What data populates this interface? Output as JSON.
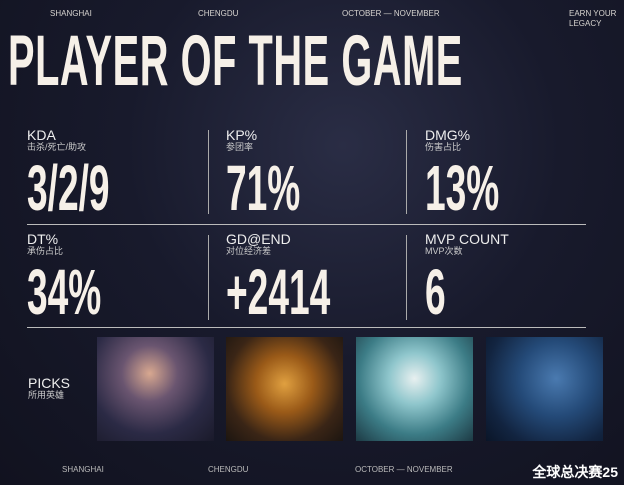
{
  "header": {
    "city1": "SHANGHAI",
    "city2": "CHENGDU",
    "dates": "OCTOBER — NOVEMBER",
    "tagline_1": "EARN YOUR",
    "tagline_2": "LEGACY"
  },
  "title": "PLAYER OF THE GAME",
  "stats": [
    {
      "label": "KDA",
      "sub": "击杀/死亡/助攻",
      "value": "3/2/9"
    },
    {
      "label": "KP%",
      "sub": "参团率",
      "value": "71%"
    },
    {
      "label": "DMG%",
      "sub": "伤害占比",
      "value": "13%"
    },
    {
      "label": "DT%",
      "sub": "承伤占比",
      "value": "34%"
    },
    {
      "label": "GD@END",
      "sub": "对位经济差",
      "value": "+2414"
    },
    {
      "label": "MVP COUNT",
      "sub": "MVP次数",
      "value": "6"
    }
  ],
  "picks": {
    "label": "PICKS",
    "sub": "所用英雄",
    "champions": [
      "champion-portrait-1",
      "champion-portrait-2",
      "champion-portrait-3",
      "champion-portrait-4"
    ]
  },
  "footer": {
    "city1": "SHANGHAI",
    "city2": "CHENGDU",
    "dates": "OCTOBER — NOVEMBER",
    "logo": "全球总决赛25"
  }
}
